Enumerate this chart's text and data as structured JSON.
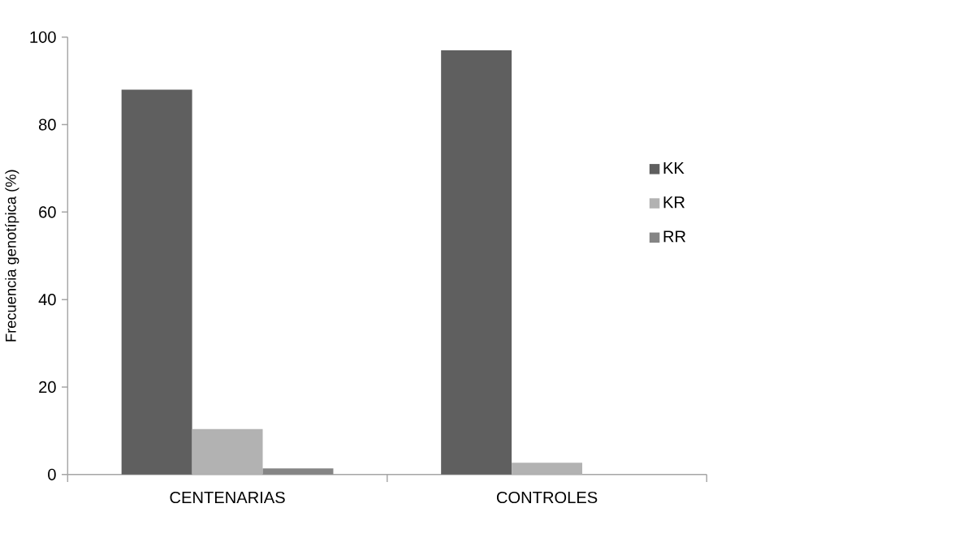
{
  "chart_data": {
    "type": "bar",
    "ylabel": "Frecuencia genotípica (%)",
    "categories": [
      "CENTENARIAS",
      "CONTROLES"
    ],
    "series": [
      {
        "name": "KK",
        "color": "#5f5f5f",
        "values": [
          88,
          97
        ]
      },
      {
        "name": "KR",
        "color": "#b2b2b2",
        "values": [
          10.4,
          2.7
        ]
      },
      {
        "name": "RR",
        "color": "#858585",
        "values": [
          1.4,
          0
        ]
      }
    ],
    "ylim": [
      0,
      100
    ],
    "yticks": [
      0,
      20,
      40,
      60,
      80,
      100
    ],
    "grid": false,
    "legend": "right"
  }
}
